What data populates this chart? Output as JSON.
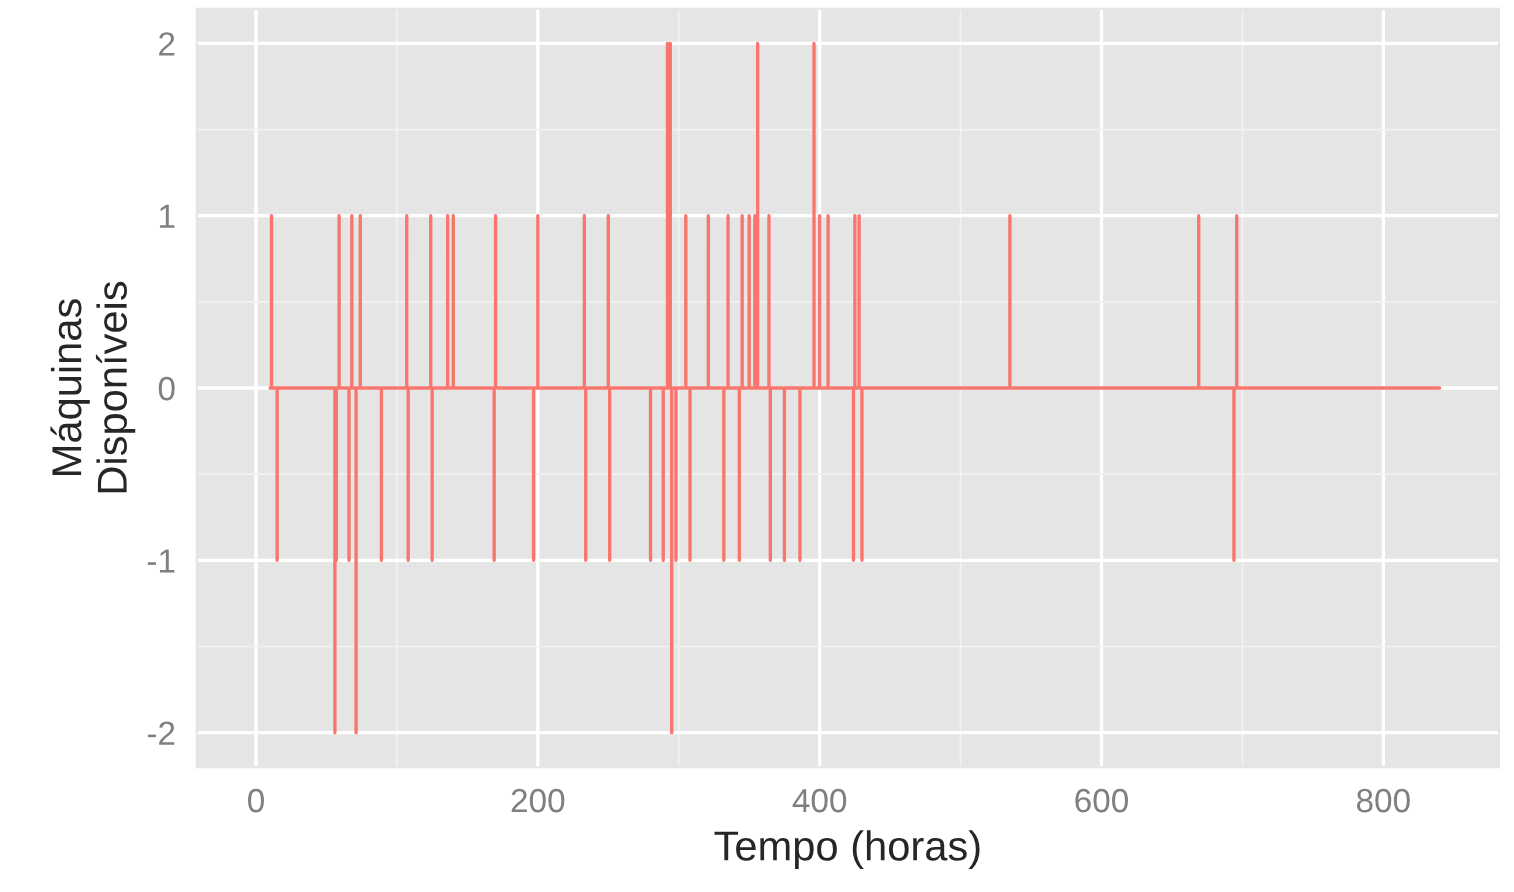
{
  "chart_data": {
    "type": "line",
    "xlabel": "Tempo (horas)",
    "ylabel": "Máquinas\nDisponíveis",
    "x": [
      10,
      11,
      11,
      11,
      15,
      15,
      15,
      56,
      56,
      56,
      57,
      57,
      57,
      59,
      59,
      59,
      66,
      66,
      66,
      68,
      68,
      68,
      71,
      71,
      71,
      74,
      74,
      74,
      89,
      89,
      89,
      107,
      107,
      107,
      108,
      108,
      108,
      124,
      124,
      124,
      125,
      125,
      125,
      136,
      136,
      136,
      140,
      140,
      140,
      169,
      169,
      169,
      170,
      170,
      170,
      197,
      197,
      197,
      200,
      200,
      200,
      233,
      233,
      233,
      234,
      234,
      234,
      250,
      250,
      250,
      251,
      251,
      251,
      280,
      280,
      280,
      289,
      289,
      289,
      292,
      292,
      292,
      294,
      294,
      294,
      295,
      295,
      295,
      298,
      298,
      298,
      305,
      305,
      305,
      308,
      308,
      308,
      321,
      321,
      321,
      332,
      332,
      332,
      335,
      335,
      335,
      343,
      343,
      343,
      345,
      345,
      345,
      350,
      350,
      350,
      354,
      354,
      354,
      356,
      356,
      356,
      364,
      364,
      364,
      365,
      365,
      365,
      375,
      375,
      375,
      386,
      386,
      386,
      396,
      396,
      396,
      400,
      400,
      400,
      406,
      406,
      406,
      424,
      424,
      424,
      425,
      425,
      425,
      428,
      428,
      428,
      430,
      430,
      430,
      535,
      535,
      535,
      669,
      669,
      669,
      694,
      694,
      694,
      696,
      696,
      696,
      840
    ],
    "series": [
      {
        "color": "#f8766d",
        "values": [
          0,
          0,
          1,
          0,
          0,
          -1,
          0,
          0,
          -2,
          0,
          0,
          -1,
          0,
          0,
          1,
          0,
          0,
          -1,
          0,
          0,
          1,
          0,
          0,
          -2,
          0,
          0,
          1,
          0,
          0,
          -1,
          0,
          0,
          1,
          0,
          0,
          -1,
          0,
          0,
          1,
          0,
          0,
          -1,
          0,
          0,
          1,
          0,
          0,
          1,
          0,
          0,
          -1,
          0,
          0,
          1,
          0,
          0,
          -1,
          0,
          0,
          1,
          0,
          0,
          1,
          0,
          0,
          -1,
          0,
          0,
          1,
          0,
          0,
          -1,
          0,
          0,
          -1,
          0,
          0,
          -1,
          0,
          0,
          2,
          0,
          0,
          2,
          0,
          0,
          -2,
          0,
          0,
          -1,
          0,
          0,
          1,
          0,
          0,
          -1,
          0,
          0,
          1,
          0,
          0,
          -1,
          0,
          0,
          1,
          0,
          0,
          -1,
          0,
          0,
          1,
          0,
          0,
          1,
          0,
          0,
          1,
          0,
          0,
          2,
          0,
          0,
          1,
          0,
          0,
          -1,
          0,
          0,
          -1,
          0,
          0,
          -1,
          0,
          0,
          2,
          0,
          0,
          1,
          0,
          0,
          1,
          0,
          0,
          -1,
          0,
          0,
          1,
          0,
          0,
          1,
          0,
          0,
          -1,
          0,
          0,
          1,
          0,
          0,
          1,
          0,
          0,
          -1,
          0,
          0,
          1,
          0,
          0
        ]
      }
    ],
    "xlim": [
      -42,
      882
    ],
    "ylim": [
      -2.2,
      2.2
    ],
    "xticks": [
      0,
      200,
      400,
      600,
      800
    ],
    "yticks": [
      -2,
      -1,
      0,
      1,
      2
    ],
    "grid": true,
    "legend": false
  }
}
